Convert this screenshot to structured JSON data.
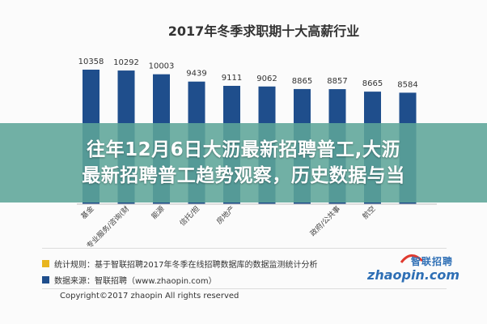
{
  "chart_data": {
    "type": "bar",
    "title": "2017年冬季求职期十大高薪行业",
    "categories": [
      "基金/证券/期货/投资",
      "专业服务/咨询(财会/法律/人力…)",
      "能源/矿产/采掘/冶炼",
      "信托/担保/拍卖/典当",
      "房地产/建筑/建材/工程",
      "…",
      "…",
      "政府/公共事业/非营利机构",
      "航空/航天研究与制造",
      "…"
    ],
    "category_display": [
      "基金",
      "专业服务/咨询(财",
      "能源",
      "信托/担",
      "房地产",
      "",
      "",
      "政府/公共事",
      "航空",
      ""
    ],
    "values": [
      10358,
      10292,
      10003,
      9439,
      9111,
      9062,
      8865,
      8857,
      8665,
      8584
    ],
    "ylim": [
      0,
      10800
    ],
    "bar_color": "#1f4e8c",
    "grid": false
  },
  "banner": {
    "line1": "往年12月6日大沥最新招聘普工,大沥",
    "line2": "最新招聘普工趋势观察，历史数据与当"
  },
  "legend": {
    "items": [
      {
        "text": "统计规则：基于智联招聘2017年冬季在线招聘数据库的数据监测统计分析",
        "color": "#e8b51e"
      },
      {
        "text": "数据来源：智联招聘（www.zhaopin.com）",
        "color": "#1f4e8c"
      }
    ]
  },
  "logo": {
    "cn": "智联招聘",
    "en": "zhaopin.com"
  },
  "copyright": "Copyright©2017 zhaopin All rights reserved"
}
